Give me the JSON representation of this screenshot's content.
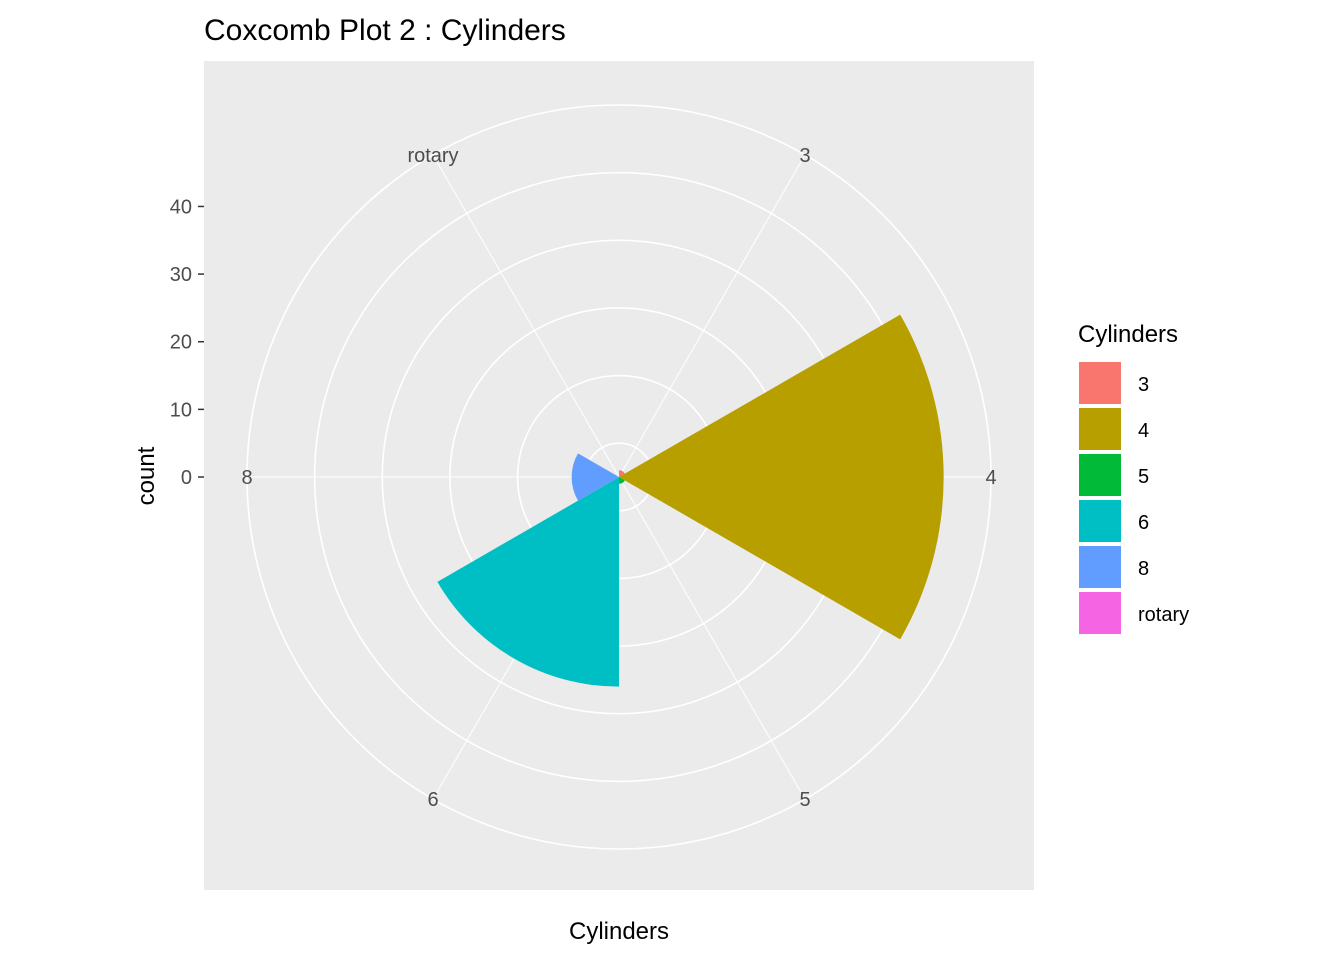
{
  "chart_data": {
    "type": "coxcomb",
    "title": "Coxcomb Plot 2 : Cylinders",
    "xlabel": "Cylinders",
    "ylabel": "count",
    "categories": [
      "3",
      "4",
      "5",
      "6",
      "8",
      "rotary"
    ],
    "values": [
      1,
      48,
      1,
      31,
      7,
      0
    ],
    "colors": [
      "#F8766D",
      "#B79F00",
      "#00BA38",
      "#00BFC4",
      "#619CFF",
      "#F564E3"
    ],
    "r_ticks": [
      0,
      10,
      20,
      30,
      40
    ],
    "r_max": 55,
    "legend": {
      "title": "Cylinders",
      "position": "right"
    },
    "panel_background": "#EBEBEB",
    "grid": true
  }
}
